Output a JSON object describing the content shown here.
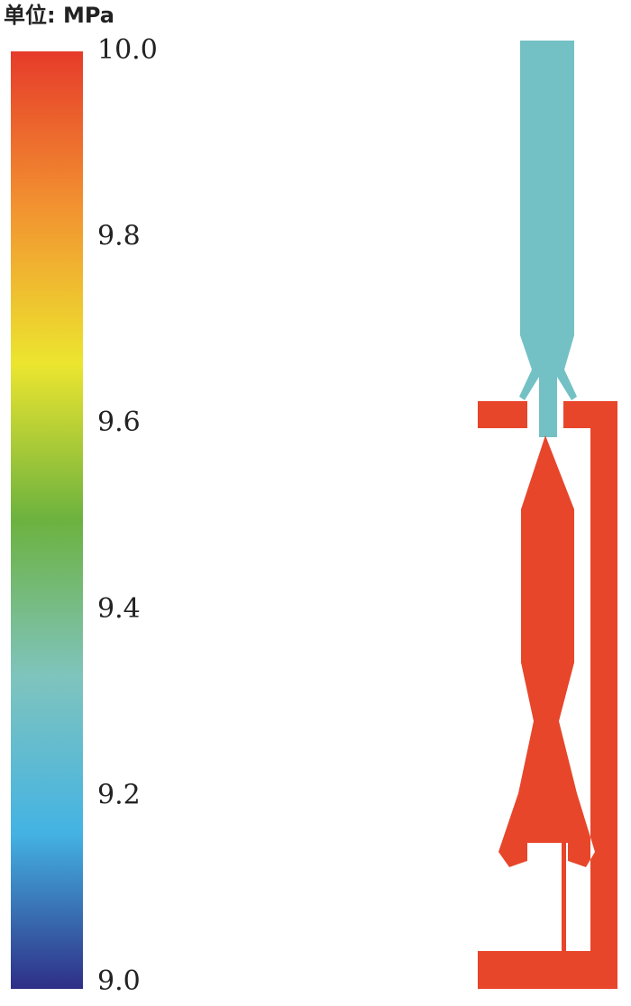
{
  "chart_data": {
    "type": "contour",
    "colorbar_title": "单位: MPa",
    "zlim": [
      9.0,
      10.0
    ],
    "zticks": [
      {
        "value": 9.0,
        "label": "9.0"
      },
      9.2,
      9.4,
      9.6,
      9.8,
      {
        "value": 10.0,
        "label": "10.0"
      }
    ],
    "colormap": [
      "#2e2f86",
      "#44b3e3",
      "#7fc4bd",
      "#6cb23f",
      "#ece52f",
      "#f29330",
      "#e63b2a"
    ],
    "regions": [
      {
        "name": "upper",
        "value": 9.3
      },
      {
        "name": "lower",
        "value": 9.98
      }
    ]
  }
}
